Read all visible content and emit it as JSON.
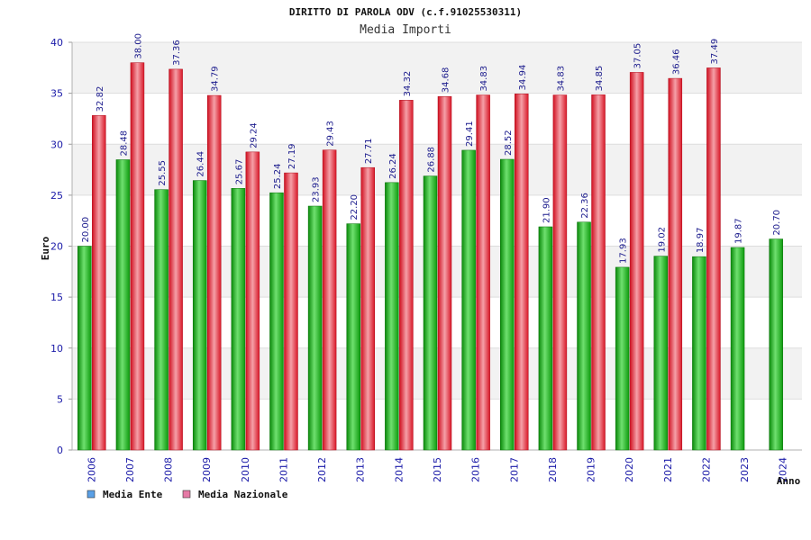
{
  "chart_data": {
    "type": "bar",
    "title": "DIRITTO DI PAROLA ODV (c.f.91025530311)",
    "subtitle": "Media Importi",
    "xlabel": "Anno",
    "ylabel": "Euro",
    "ylim": [
      0,
      40
    ],
    "yticks": [
      0,
      5,
      10,
      15,
      20,
      25,
      30,
      35,
      40
    ],
    "categories": [
      "2006",
      "2007",
      "2008",
      "2009",
      "2010",
      "2011",
      "2012",
      "2013",
      "2014",
      "2015",
      "2016",
      "2017",
      "2018",
      "2019",
      "2020",
      "2021",
      "2022",
      "2023",
      "2024"
    ],
    "series": [
      {
        "name": "Media Ente",
        "values": [
          20.0,
          28.48,
          25.55,
          26.44,
          25.67,
          25.24,
          23.93,
          22.2,
          26.24,
          26.88,
          29.41,
          28.52,
          21.9,
          22.36,
          17.93,
          19.02,
          18.97,
          19.87,
          20.7
        ],
        "labels": [
          "20.00",
          "28.48",
          "25.55",
          "26.44",
          "25.67",
          "25.24",
          "23.93",
          "22.20",
          "26.24",
          "26.88",
          "29.41",
          "28.52",
          "21.90",
          "22.36",
          "17.93",
          "19.02",
          "18.97",
          "19.87",
          "20.70"
        ],
        "color": "#18b418",
        "legend_color": "#5aa0e6"
      },
      {
        "name": "Media Nazionale",
        "values": [
          32.82,
          38.0,
          37.36,
          34.79,
          29.24,
          27.19,
          29.43,
          27.71,
          34.32,
          34.68,
          34.83,
          34.94,
          34.83,
          34.85,
          37.05,
          36.46,
          37.49,
          null,
          null
        ],
        "labels": [
          "32.82",
          "38.00",
          "37.36",
          "34.79",
          "29.24",
          "27.19",
          "29.43",
          "27.71",
          "34.32",
          "34.68",
          "34.83",
          "34.94",
          "34.83",
          "34.85",
          "37.05",
          "36.46",
          "37.49",
          "",
          ""
        ],
        "color": "#e8283a",
        "legend_color": "#e67aa6"
      }
    ],
    "legend_position": "bottom-left",
    "grid": true
  }
}
